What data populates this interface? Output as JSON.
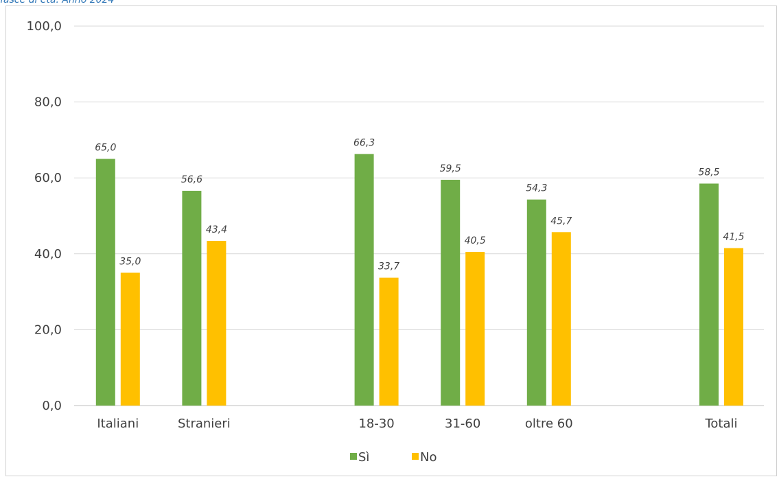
{
  "caption": "fasce di età. Anno 2024",
  "chart_data": {
    "type": "bar",
    "categories": [
      "Italiani",
      "Stranieri",
      "",
      "18-30",
      "31-60",
      "oltre 60",
      "",
      "Totali"
    ],
    "series": [
      {
        "name": "Sì",
        "color": "#70ad47",
        "values": [
          65.0,
          56.6,
          null,
          66.3,
          59.5,
          54.3,
          null,
          58.5
        ]
      },
      {
        "name": "No",
        "color": "#ffc000",
        "values": [
          35.0,
          43.4,
          null,
          33.7,
          40.5,
          45.7,
          null,
          41.5
        ]
      }
    ],
    "ylim": [
      0,
      100
    ],
    "yticks": [
      "0,0",
      "20,0",
      "40,0",
      "60,0",
      "80,0",
      "100,0"
    ],
    "grid": true,
    "legend_position": "bottom"
  }
}
